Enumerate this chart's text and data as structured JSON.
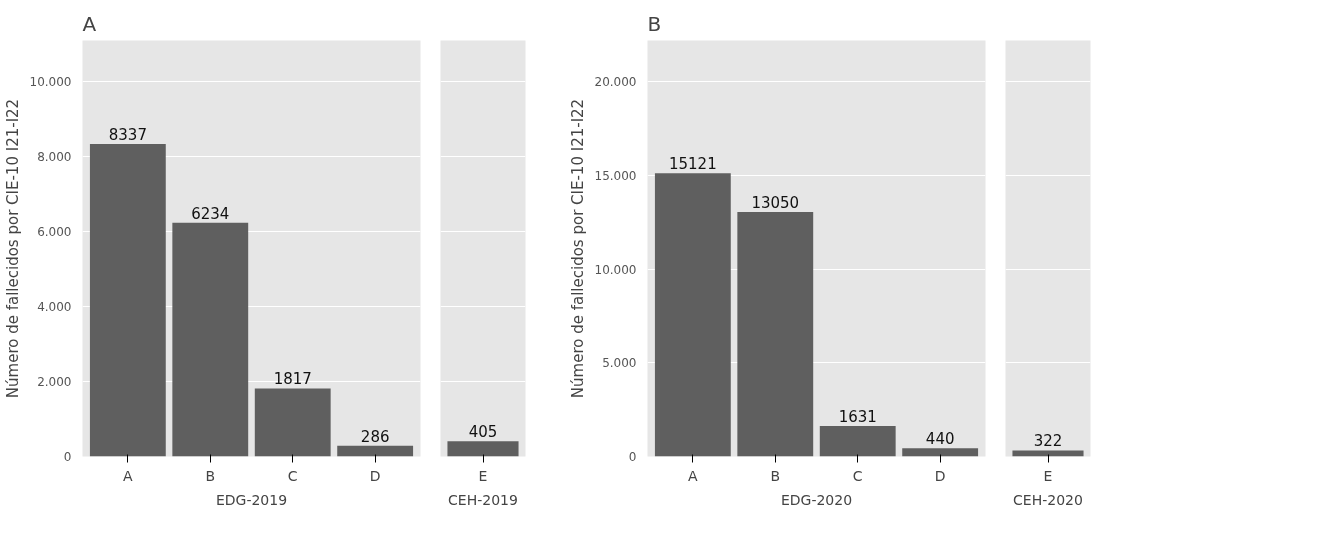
{
  "chart_data": [
    {
      "type": "bar",
      "title": "A",
      "ylabel": "Número de fallecidos por CIE-10 I21-I22",
      "xlabel": "EDG-2019",
      "categories": [
        "A",
        "B",
        "C",
        "D"
      ],
      "values": [
        8337,
        6234,
        1817,
        286
      ],
      "color": "#5f5f5f",
      "data_labels": true,
      "grid": "y",
      "ylim": [
        0,
        11100
      ],
      "yticks": [
        0,
        {
          "value": 2000,
          "label": "2.000"
        },
        {
          "value": 4000,
          "label": "4.000"
        },
        {
          "value": 6000,
          "label": "6.000"
        },
        {
          "value": 8000,
          "label": "8.000"
        },
        {
          "value": 10000,
          "label": "10.000"
        }
      ]
    },
    {
      "type": "bar",
      "xlabel": "CEH-2019",
      "categories": [
        "E"
      ],
      "values": [
        405
      ],
      "color": "#5f5f5f",
      "data_labels": true,
      "grid": "y",
      "tick_labels": "x",
      "ylim": [
        0,
        11100
      ],
      "yticks": [
        0,
        2000,
        4000,
        6000,
        8000,
        10000
      ]
    },
    {
      "type": "bar",
      "title": "B",
      "ylabel": "Número de fallecidos por CIE-10 I21-I22",
      "xlabel": "EDG-2020",
      "categories": [
        "A",
        "B",
        "C",
        "D"
      ],
      "values": [
        15121,
        13050,
        1631,
        440
      ],
      "color": "#5f5f5f",
      "data_labels": true,
      "grid": "y",
      "ylim": [
        0,
        22200
      ],
      "yticks": [
        0,
        {
          "value": 5000,
          "label": "5.000"
        },
        {
          "value": 10000,
          "label": "10.000"
        },
        {
          "value": 15000,
          "label": "15.000"
        },
        {
          "value": 20000,
          "label": "20.000"
        }
      ]
    },
    {
      "type": "bar",
      "xlabel": "CEH-2020",
      "categories": [
        "E"
      ],
      "values": [
        322
      ],
      "color": "#5f5f5f",
      "data_labels": true,
      "grid": "y",
      "tick_labels": "x",
      "ylim": [
        0,
        22200
      ],
      "yticks": [
        0,
        5000,
        10000,
        15000,
        20000
      ]
    }
  ]
}
